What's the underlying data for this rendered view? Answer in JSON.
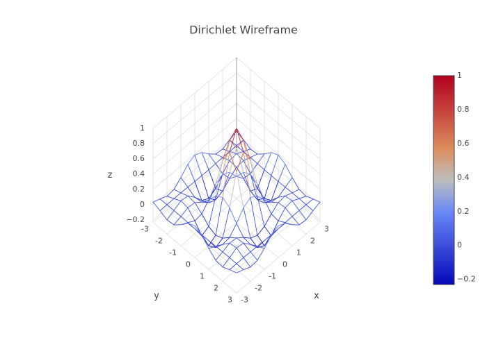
{
  "chart_data": {
    "type": "wireframe",
    "title": "Dirichlet Wireframe",
    "x_label": "x",
    "y_label": "y",
    "z_label": "z",
    "x": [
      -3,
      -2.5,
      -2,
      -1.5,
      -1,
      -0.5,
      0,
      0.5,
      1,
      1.5,
      2,
      2.5,
      3
    ],
    "y": [
      -3,
      -2.5,
      -2,
      -1.5,
      -1,
      -0.5,
      0,
      0.5,
      1,
      1.5,
      2,
      2.5,
      3
    ],
    "z": [
      [
        0.035,
        -0.001,
        -0.043,
        -0.032,
        0.047,
        0.144,
        0.188,
        0.144,
        0.047,
        -0.032,
        -0.043,
        -0.001,
        0.035
      ],
      [
        -0.001,
        0,
        0.002,
        0.001,
        -0.002,
        -0.005,
        -0.007,
        -0.005,
        -0.002,
        0.001,
        0.002,
        0,
        -0.001
      ],
      [
        -0.043,
        0.002,
        0.052,
        0.038,
        -0.057,
        -0.175,
        -0.228,
        -0.175,
        -0.057,
        0.038,
        0.052,
        0.002,
        -0.043
      ],
      [
        -0.032,
        0.001,
        0.038,
        0.028,
        -0.042,
        -0.129,
        -0.168,
        -0.129,
        -0.042,
        0.028,
        0.038,
        0.001,
        -0.032
      ],
      [
        0.047,
        -0.002,
        -0.057,
        -0.042,
        0.063,
        0.192,
        0.25,
        0.192,
        0.063,
        -0.042,
        -0.057,
        -0.002,
        0.047
      ],
      [
        0.144,
        -0.005,
        -0.175,
        -0.129,
        0.192,
        0.588,
        0.767,
        0.588,
        0.192,
        -0.129,
        -0.175,
        -0.005,
        0.144
      ],
      [
        0.188,
        -0.007,
        -0.228,
        -0.168,
        0.25,
        0.767,
        1,
        0.767,
        0.25,
        -0.168,
        -0.228,
        -0.007,
        0.188
      ],
      [
        0.144,
        -0.005,
        -0.175,
        -0.129,
        0.192,
        0.588,
        0.767,
        0.588,
        0.192,
        -0.129,
        -0.175,
        -0.005,
        0.144
      ],
      [
        0.047,
        -0.002,
        -0.057,
        -0.042,
        0.063,
        0.192,
        0.25,
        0.192,
        0.063,
        -0.042,
        -0.057,
        -0.002,
        0.047
      ],
      [
        -0.032,
        0.001,
        0.038,
        0.028,
        -0.042,
        -0.129,
        -0.168,
        -0.129,
        -0.042,
        0.028,
        0.038,
        0.001,
        -0.032
      ],
      [
        -0.043,
        0.002,
        0.052,
        0.038,
        -0.057,
        -0.175,
        -0.228,
        -0.175,
        -0.057,
        0.038,
        0.052,
        0.002,
        -0.043
      ],
      [
        -0.001,
        0,
        0.002,
        0.001,
        -0.002,
        -0.005,
        -0.007,
        -0.005,
        -0.002,
        0.001,
        0.002,
        0,
        -0.001
      ],
      [
        0.035,
        -0.001,
        -0.043,
        -0.032,
        0.047,
        0.144,
        0.188,
        0.144,
        0.047,
        -0.032,
        -0.043,
        -0.001,
        0.035
      ]
    ],
    "xlim": [
      -3,
      3
    ],
    "ylim": [
      -3,
      3
    ],
    "zlim": [
      -0.23,
      1
    ],
    "xticks": [
      -3,
      -2,
      -1,
      0,
      1,
      2,
      3
    ],
    "yticks": [
      -3,
      -2,
      -1,
      0,
      1,
      2,
      3
    ],
    "zticks": [
      {
        "value": -0.2,
        "label": "−0.2"
      },
      0,
      0.2,
      0.4,
      0.6,
      0.8,
      1
    ],
    "colorbar_ticks": [
      {
        "value": -0.2,
        "label": "−0.2"
      },
      0,
      0.2,
      0.4,
      0.6,
      0.8,
      1
    ],
    "colorscale": [
      [
        0,
        "#0508b8"
      ],
      [
        0.35,
        "#6a89f7"
      ],
      [
        0.5,
        "#bebebe"
      ],
      [
        0.65,
        "#dc8d5d"
      ],
      [
        1,
        "#b0001e"
      ]
    ],
    "grid": true
  }
}
